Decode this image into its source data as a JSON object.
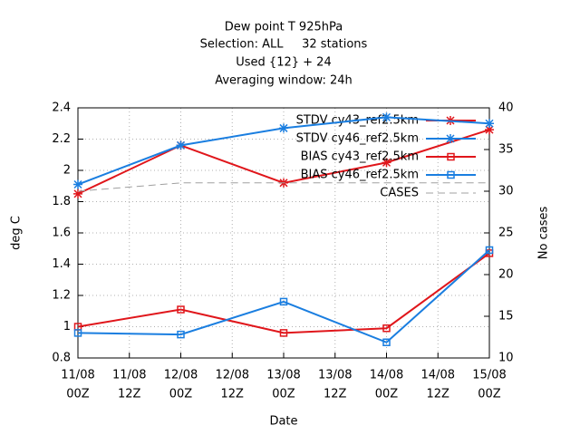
{
  "chart_data": {
    "type": "line",
    "title": [
      "Dew point T 925hPa",
      "Selection: ALL     32 stations",
      "Used {12} + 24",
      "Averaging window: 24h"
    ],
    "xlabel": "Date",
    "ylabel": "deg C",
    "y2label": "No cases",
    "x": [
      0,
      24,
      48,
      72,
      96
    ],
    "xlim": [
      0,
      96
    ],
    "xticks": [
      {
        "value": 0,
        "label": [
          "11/08",
          "00Z"
        ]
      },
      {
        "value": 12,
        "label": [
          "11/08",
          "12Z"
        ]
      },
      {
        "value": 24,
        "label": [
          "12/08",
          "00Z"
        ]
      },
      {
        "value": 36,
        "label": [
          "12/08",
          "12Z"
        ]
      },
      {
        "value": 48,
        "label": [
          "13/08",
          "00Z"
        ]
      },
      {
        "value": 60,
        "label": [
          "13/08",
          "12Z"
        ]
      },
      {
        "value": 72,
        "label": [
          "14/08",
          "00Z"
        ]
      },
      {
        "value": 84,
        "label": [
          "14/08",
          "12Z"
        ]
      },
      {
        "value": 96,
        "label": [
          "15/08",
          "00Z"
        ]
      }
    ],
    "ylim": [
      0.8,
      2.4
    ],
    "yticks": [
      {
        "value": 0.8,
        "label": "0.8"
      },
      1,
      1.2,
      1.4,
      1.6,
      1.8,
      2,
      2.2,
      2.4
    ],
    "y2lim": [
      10,
      40
    ],
    "y2ticks": [
      10,
      15,
      20,
      25,
      30,
      35,
      40
    ],
    "grid": true,
    "legend": "top-right",
    "series": [
      {
        "name": "STDV cy43_ref2.5km",
        "color": "#e0161b",
        "marker": "star",
        "values": [
          1.85,
          2.16,
          1.92,
          2.05,
          2.26
        ]
      },
      {
        "name": "STDV cy46_ref2.5km",
        "color": "#1a7ee0",
        "marker": "star",
        "values": [
          1.91,
          2.16,
          2.27,
          2.34,
          2.3
        ]
      },
      {
        "name": "BIAS cy43_ref2.5km",
        "color": "#e0161b",
        "marker": "square",
        "values": [
          1.0,
          1.11,
          0.96,
          0.99,
          1.47
        ]
      },
      {
        "name": "BIAS cy46_ref2.5km",
        "color": "#1a7ee0",
        "marker": "square",
        "values": [
          0.96,
          0.95,
          1.16,
          0.9,
          1.49
        ]
      },
      {
        "name": "CASES",
        "color": "#a0a0a0",
        "marker": "none",
        "dash": true,
        "axis": "y2",
        "values": [
          30,
          31,
          31,
          31,
          31
        ]
      }
    ]
  }
}
